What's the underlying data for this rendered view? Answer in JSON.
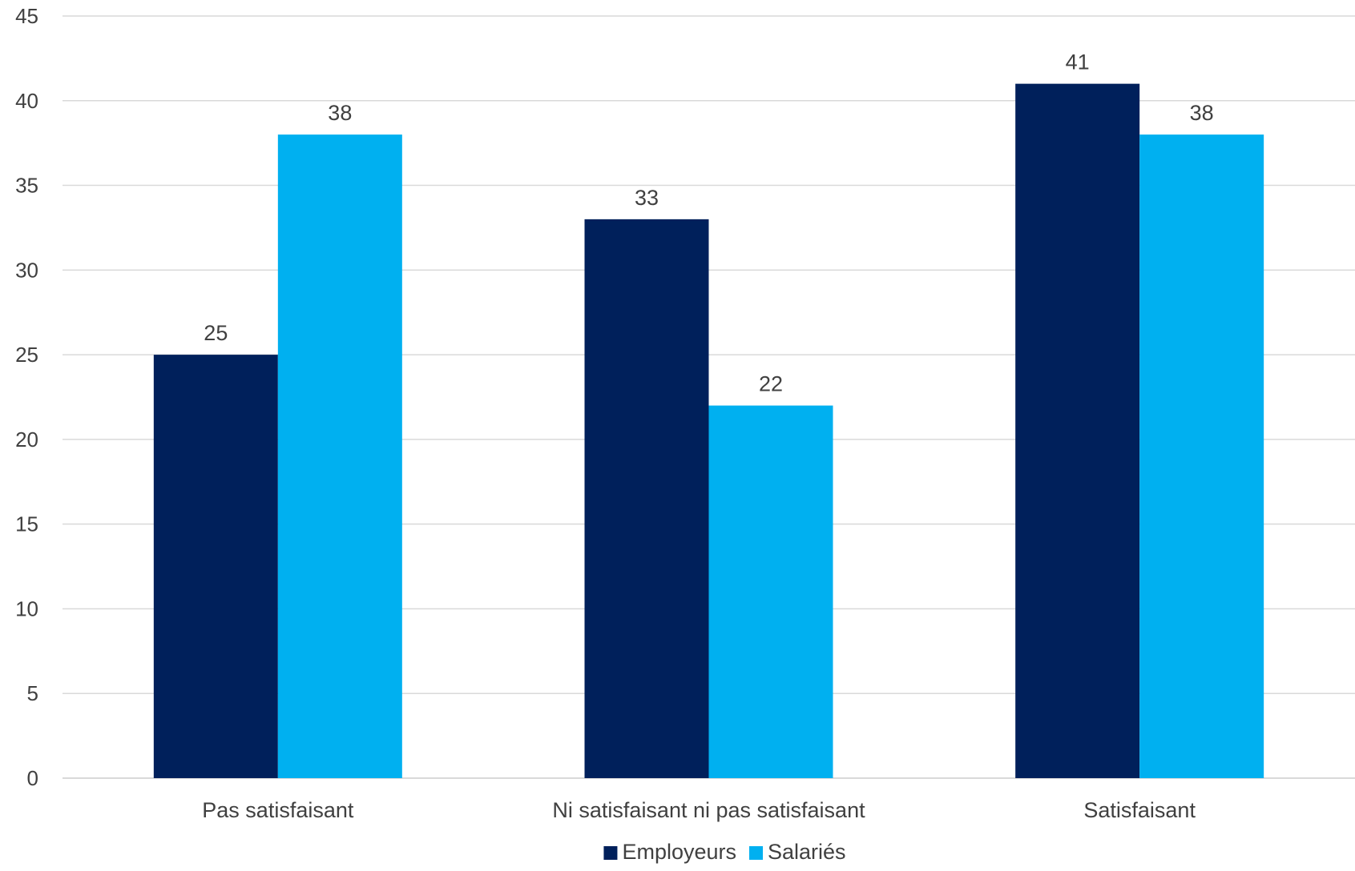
{
  "chart_data": {
    "type": "bar",
    "title": "",
    "xlabel": "",
    "ylabel": "",
    "categories": [
      "Pas satisfaisant",
      "Ni satisfaisant ni pas  satisfaisant",
      "Satisfaisant"
    ],
    "series": [
      {
        "name": "Employeurs",
        "color": "#00205b",
        "values": [
          25,
          33,
          41
        ]
      },
      {
        "name": "Salariés",
        "color": "#00b0f0",
        "values": [
          38,
          22,
          38
        ]
      }
    ],
    "ylim": [
      0,
      45
    ],
    "yticks": [
      0,
      5,
      10,
      15,
      20,
      25,
      30,
      35,
      40,
      45
    ],
    "grid": true,
    "legend": "bottom-center",
    "data_labels": true
  }
}
